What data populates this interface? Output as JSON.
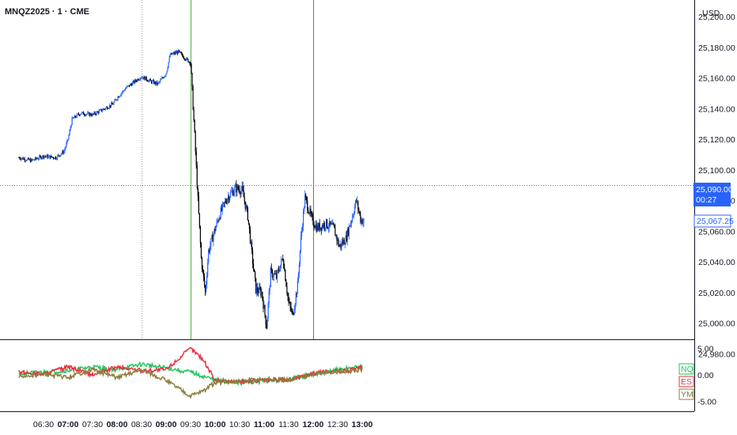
{
  "header": {
    "symbol_title": "MNQZ2025 · 1 · CME",
    "currency": "USD"
  },
  "colors": {
    "candle_up": "#2962ff",
    "candle_down": "#000000",
    "vline_green": "#4caf50",
    "vline_red": "#f23645",
    "dotted_v": "#9e9e9e",
    "price_line": "#2962ff",
    "nq": "#22c55e",
    "es": "#e8303f",
    "ym": "#8b7d3a"
  },
  "chart_data": [
    {
      "type": "candlestick",
      "title": "MNQZ2025 · 1 · CME",
      "x_ticks": [
        "06:30",
        "07:00",
        "07:30",
        "08:00",
        "08:30",
        "09:00",
        "09:30",
        "10:00",
        "10:30",
        "11:00",
        "11:30",
        "12:00",
        "12:30",
        "13:00"
      ],
      "x_ticks_bold": [
        "07:00",
        "08:00",
        "09:00",
        "10:00",
        "11:00",
        "12:00",
        "13:00"
      ],
      "y_ticks": [
        "25,200.00",
        "25,180.00",
        "25,160.00",
        "25,140.00",
        "25,120.00",
        "25,100.00",
        "25,080.00",
        "25,060.00",
        "25,040.00",
        "25,020.00",
        "25,000.00",
        "24,980.00"
      ],
      "ylim": [
        24975,
        25214
      ],
      "vertical_markers": [
        {
          "time": "08:30",
          "style": "dotted"
        },
        {
          "time": "09:30",
          "style": "green"
        },
        {
          "time": "12:00",
          "style": "red"
        }
      ],
      "price_line": 25090.0,
      "labels": {
        "last_price": "25,090.00",
        "countdown": "00:27",
        "secondary_price": "25,067.25"
      },
      "path_keypoints": [
        [
          "06:00",
          25108
        ],
        [
          "06:15",
          25106
        ],
        [
          "06:30",
          25109
        ],
        [
          "06:45",
          25108
        ],
        [
          "06:55",
          25112
        ],
        [
          "07:00",
          25120
        ],
        [
          "07:05",
          25133
        ],
        [
          "07:15",
          25137
        ],
        [
          "07:30",
          25136
        ],
        [
          "07:45",
          25140
        ],
        [
          "07:55",
          25143
        ],
        [
          "08:00",
          25147
        ],
        [
          "08:10",
          25153
        ],
        [
          "08:20",
          25157
        ],
        [
          "08:30",
          25161
        ],
        [
          "08:40",
          25158
        ],
        [
          "08:50",
          25156
        ],
        [
          "09:00",
          25163
        ],
        [
          "09:05",
          25175
        ],
        [
          "09:15",
          25177
        ],
        [
          "09:25",
          25172
        ],
        [
          "09:30",
          25170
        ],
        [
          "09:33",
          25142
        ],
        [
          "09:36",
          25112
        ],
        [
          "09:39",
          25080
        ],
        [
          "09:43",
          25042
        ],
        [
          "09:48",
          25020
        ],
        [
          "09:52",
          25047
        ],
        [
          "09:58",
          25058
        ],
        [
          "10:05",
          25070
        ],
        [
          "10:15",
          25082
        ],
        [
          "10:25",
          25088
        ],
        [
          "10:33",
          25087
        ],
        [
          "10:40",
          25070
        ],
        [
          "10:45",
          25045
        ],
        [
          "10:50",
          25022
        ],
        [
          "10:57",
          25020
        ],
        [
          "11:03",
          24998
        ],
        [
          "11:08",
          25033
        ],
        [
          "11:15",
          25030
        ],
        [
          "11:23",
          25043
        ],
        [
          "11:30",
          25013
        ],
        [
          "11:35",
          25005
        ],
        [
          "11:41",
          25025
        ],
        [
          "11:45",
          25055
        ],
        [
          "11:50",
          25082
        ],
        [
          "11:58",
          25068
        ],
        [
          "12:05",
          25062
        ],
        [
          "12:15",
          25065
        ],
        [
          "12:25",
          25062
        ],
        [
          "12:32",
          25050
        ],
        [
          "12:40",
          25055
        ],
        [
          "12:47",
          25068
        ],
        [
          "12:53",
          25080
        ],
        [
          "12:58",
          25068
        ],
        [
          "13:02",
          25066
        ]
      ]
    },
    {
      "type": "line",
      "y_ticks": [
        "5.00",
        "0.00",
        "-5.00"
      ],
      "ylim": [
        -7.0,
        7.0
      ],
      "series": [
        {
          "name": "NQ",
          "points": [
            [
              "06:00",
              0.2
            ],
            [
              "06:30",
              0.5
            ],
            [
              "07:00",
              0.8
            ],
            [
              "07:30",
              1.5
            ],
            [
              "08:00",
              1.0
            ],
            [
              "08:30",
              2.0
            ],
            [
              "09:00",
              1.3
            ],
            [
              "09:30",
              0.5
            ],
            [
              "10:00",
              -1.0
            ],
            [
              "10:30",
              -1.5
            ],
            [
              "11:00",
              -1.2
            ],
            [
              "11:30",
              -0.8
            ],
            [
              "12:00",
              0.0
            ],
            [
              "12:30",
              1.0
            ],
            [
              "13:00",
              1.5
            ]
          ]
        },
        {
          "name": "ES",
          "points": [
            [
              "06:00",
              0.5
            ],
            [
              "06:30",
              0.2
            ],
            [
              "07:00",
              1.5
            ],
            [
              "07:30",
              0.0
            ],
            [
              "08:00",
              1.5
            ],
            [
              "08:30",
              0.8
            ],
            [
              "09:00",
              1.0
            ],
            [
              "09:30",
              5.0
            ],
            [
              "09:45",
              3.0
            ],
            [
              "10:00",
              -1.0
            ],
            [
              "10:30",
              -1.3
            ],
            [
              "11:00",
              -1.0
            ],
            [
              "11:30",
              -1.0
            ],
            [
              "12:00",
              0.3
            ],
            [
              "12:30",
              0.7
            ],
            [
              "13:00",
              1.3
            ]
          ]
        },
        {
          "name": "YM",
          "points": [
            [
              "06:00",
              -0.4
            ],
            [
              "06:30",
              0.1
            ],
            [
              "07:00",
              -0.5
            ],
            [
              "07:30",
              1.0
            ],
            [
              "08:00",
              -0.5
            ],
            [
              "08:30",
              1.0
            ],
            [
              "09:00",
              -1.0
            ],
            [
              "09:30",
              -4.0
            ],
            [
              "09:45",
              -3.0
            ],
            [
              "10:00",
              -1.5
            ],
            [
              "10:30",
              -1.2
            ],
            [
              "11:00",
              -0.8
            ],
            [
              "11:30",
              -1.0
            ],
            [
              "12:00",
              0.2
            ],
            [
              "12:30",
              0.5
            ],
            [
              "13:00",
              1.0
            ]
          ]
        }
      ],
      "legend": [
        "NQ",
        "ES",
        "YM"
      ]
    }
  ]
}
